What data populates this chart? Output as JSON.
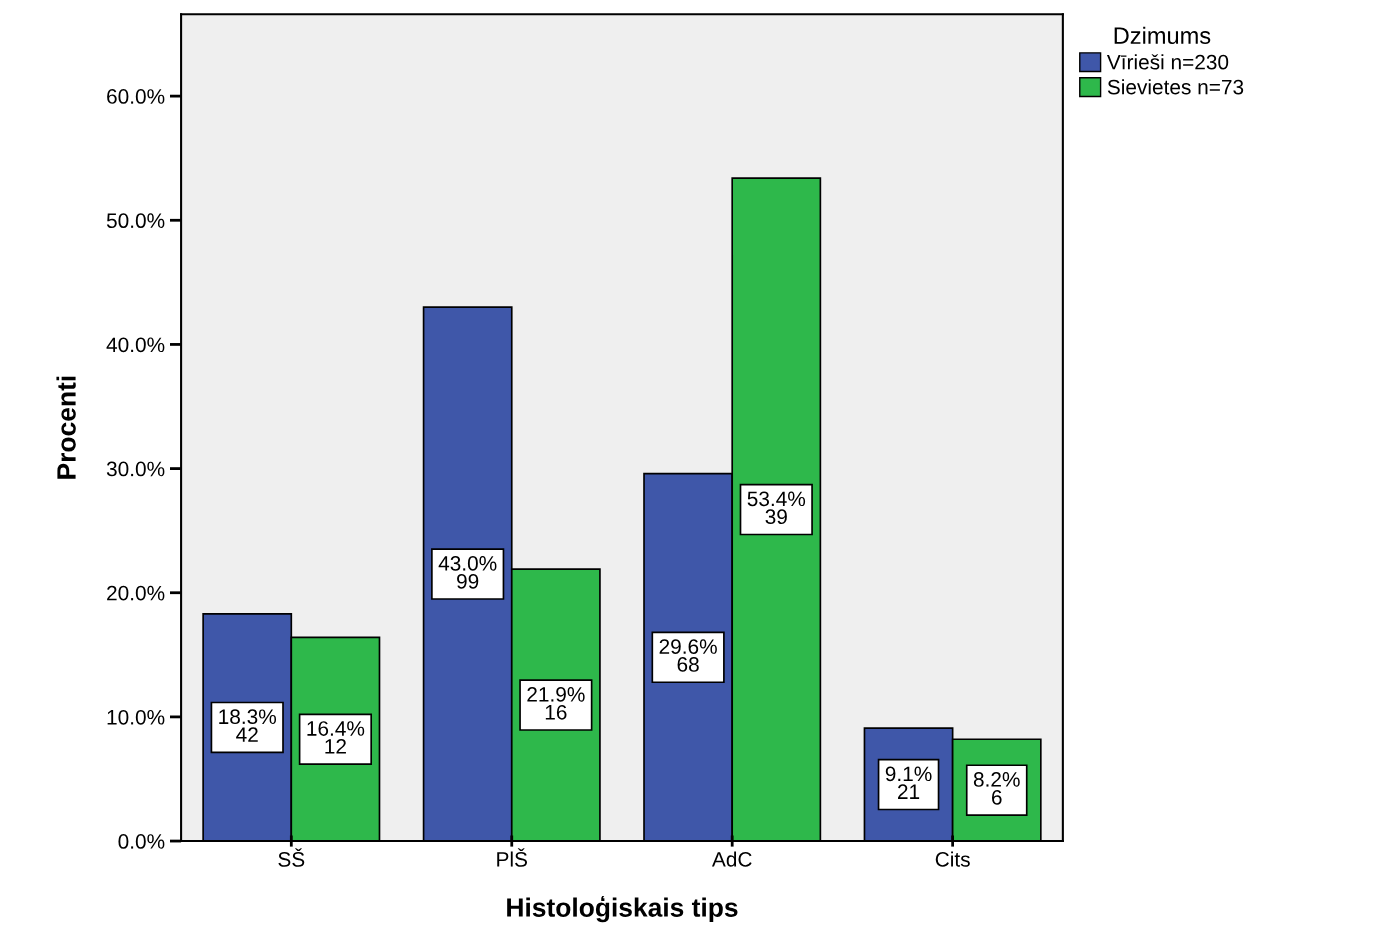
{
  "chart_data": {
    "type": "bar",
    "xlabel": "Histoloģiskais tips",
    "ylabel": "Procenti",
    "legend_title": "Dzimums",
    "categories": [
      "SŠ",
      "PlŠ",
      "AdC",
      "Cits"
    ],
    "series": [
      {
        "name": "Vīrieši n=230",
        "color": "#3f57a9",
        "values": [
          18.3,
          43.0,
          29.6,
          9.1
        ],
        "value_labels": [
          "18.3%\n42",
          "43.0%\n99",
          "29.6%\n68",
          "9.1%\n21"
        ]
      },
      {
        "name": "Sievietes n=73",
        "color": "#2eb84b",
        "values": [
          16.4,
          21.9,
          53.4,
          8.2
        ],
        "value_labels": [
          "16.4%\n12",
          "21.9%\n16",
          "53.4%\n39",
          "8.2%\n6"
        ]
      }
    ],
    "ylim": [
      0,
      66.6
    ],
    "yticks": [
      {
        "value": 0,
        "label": "0.0%"
      },
      {
        "value": 10,
        "label": "10.0%"
      },
      {
        "value": 20,
        "label": "20.0%"
      },
      {
        "value": 30,
        "label": "30.0%"
      },
      {
        "value": 40,
        "label": "40.0%"
      },
      {
        "value": 50,
        "label": "50.0%"
      },
      {
        "value": 60,
        "label": "60.0%"
      }
    ],
    "grid": false,
    "legend": "top right"
  }
}
